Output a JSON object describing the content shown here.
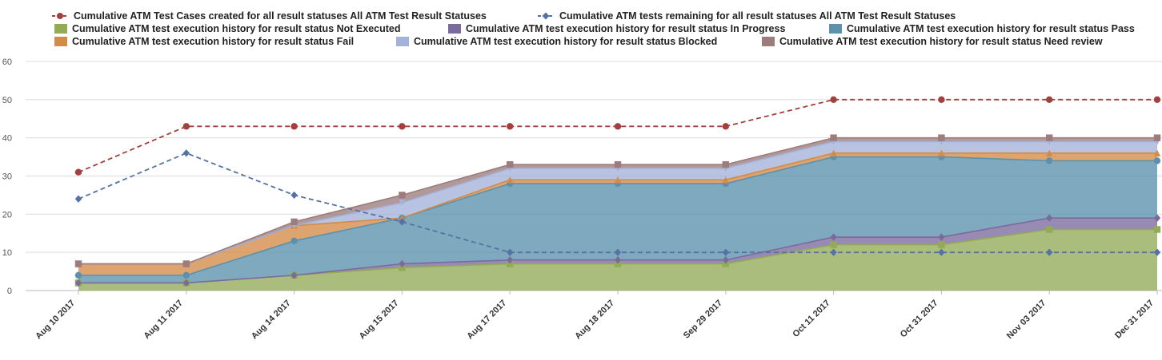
{
  "chart_data": {
    "type": "area",
    "categories": [
      "Aug 10 2017",
      "Aug 11 2017",
      "Aug 14 2017",
      "Aug 15 2017",
      "Aug 17 2017",
      "Aug 18 2017",
      "Sep 29 2017",
      "Oct 11 2017",
      "Oct 31 2017",
      "Nov 03 2017",
      "Dec 31 2017"
    ],
    "ylim": [
      0,
      60
    ],
    "yticks": [
      0,
      10,
      20,
      30,
      40,
      50,
      60
    ],
    "grid": true,
    "legend_position": "top",
    "stacked_series": [
      {
        "name": "Cumulative ATM test execution history for result status Not Executed",
        "color": "#93aa57",
        "marker": "square",
        "values": [
          2,
          2,
          4,
          6,
          7,
          7,
          7,
          12,
          12,
          16,
          16
        ]
      },
      {
        "name": "Cumulative ATM test execution history for result status In Progress",
        "color": "#7b6a9e",
        "marker": "diamond",
        "values": [
          0,
          0,
          0,
          1,
          1,
          1,
          1,
          2,
          2,
          3,
          3
        ]
      },
      {
        "name": "Cumulative ATM test execution history for result status Pass",
        "color": "#5b91ad",
        "marker": "circle",
        "values": [
          2,
          2,
          9,
          12,
          20,
          20,
          20,
          21,
          21,
          15,
          15
        ]
      },
      {
        "name": "Cumulative ATM test execution history for result status Fail",
        "color": "#d38b48",
        "marker": "triangle",
        "values": [
          3,
          3,
          4,
          0,
          1,
          1,
          1,
          1,
          1,
          2,
          2
        ]
      },
      {
        "name": "Cumulative ATM test execution history for result status Blocked",
        "color": "#a4b1d8",
        "marker": "triangle-down",
        "values": [
          0,
          0,
          0,
          4,
          3,
          3,
          3,
          3,
          3,
          3,
          3
        ]
      },
      {
        "name": "Cumulative ATM test execution history for result status Need review",
        "color": "#9c7c7c",
        "marker": "square",
        "values": [
          0,
          0,
          1,
          2,
          1,
          1,
          1,
          1,
          1,
          1,
          1
        ]
      }
    ],
    "line_series": [
      {
        "name": "Cumulative ATM Test Cases created for all result statuses All ATM Test Result Statuses",
        "color": "#a33f3c",
        "marker": "circle",
        "values": [
          31,
          43,
          43,
          43,
          43,
          43,
          43,
          50,
          50,
          50,
          50
        ]
      },
      {
        "name": "Cumulative ATM tests remaining for all result statuses All ATM Test Result Statuses",
        "color": "#5473a4",
        "marker": "diamond",
        "values": [
          24,
          36,
          25,
          18,
          10,
          10,
          10,
          10,
          10,
          10,
          10
        ]
      }
    ]
  }
}
